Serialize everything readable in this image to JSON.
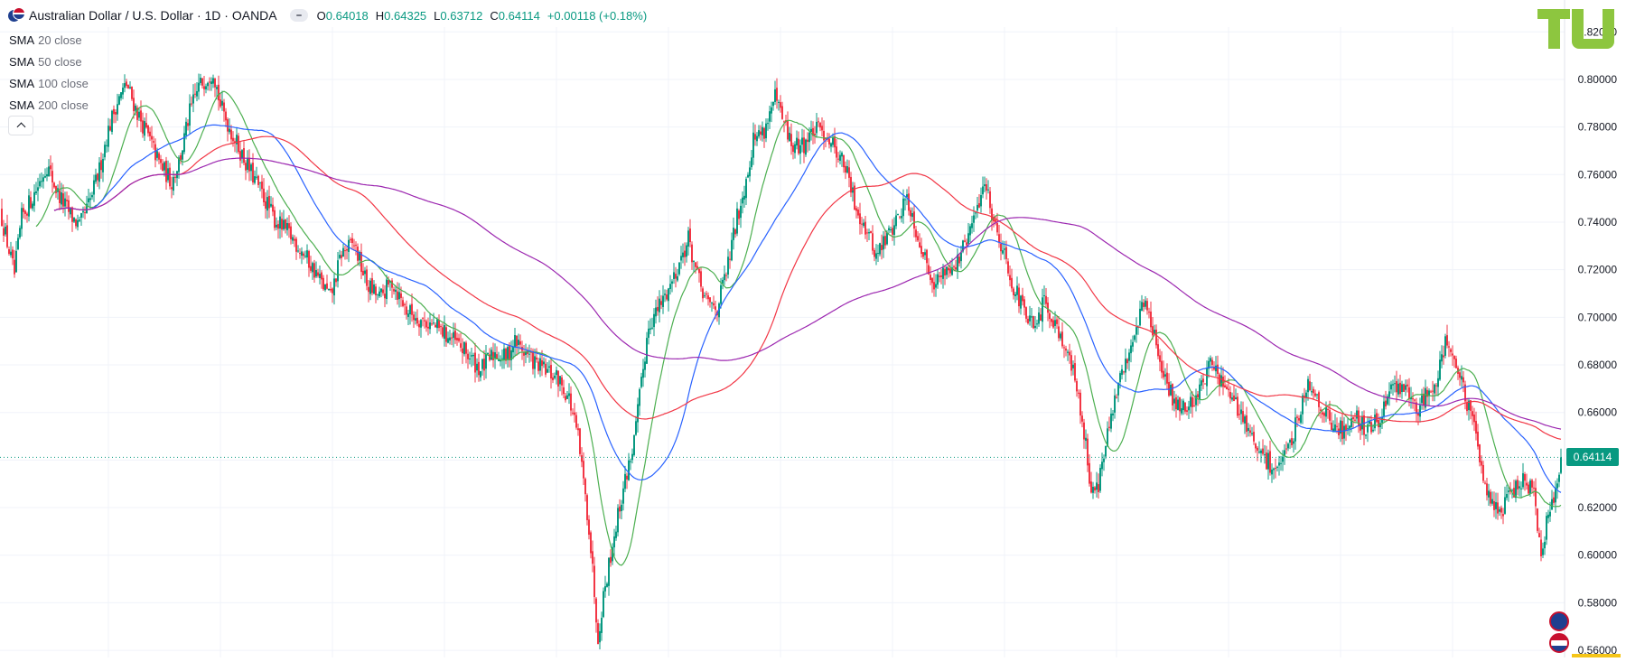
{
  "header": {
    "title": "Australian Dollar / U.S. Dollar · 1D · OANDA",
    "ohlc": [
      {
        "k": "O",
        "v": "0.64018"
      },
      {
        "k": "H",
        "v": "0.64325"
      },
      {
        "k": "L",
        "v": "0.63712"
      },
      {
        "k": "C",
        "v": "0.64114"
      }
    ],
    "change": "+0.00118 (+0.18%)"
  },
  "legend": [
    {
      "name": "SMA",
      "params": "20 close"
    },
    {
      "name": "SMA",
      "params": "50 close"
    },
    {
      "name": "SMA",
      "params": "100 close"
    },
    {
      "name": "SMA",
      "params": "200 close"
    }
  ],
  "current_price_label": "0.64114",
  "colors": {
    "up": "#089981",
    "down": "#f23645",
    "sma20": "#4caf50",
    "sma50": "#2962ff",
    "sma100": "#f23645",
    "sma200": "#9c27b0",
    "logo": "#8dc63f",
    "grid": "#f0f3fa"
  },
  "icons": {
    "collapse": "chevron-up-icon",
    "pair": "aud-usd-flag-icon",
    "base_currency": "aud-flag-icon",
    "quote_currency": "usd-flag-icon",
    "logo": "tu-logo-icon"
  },
  "chart_data": {
    "type": "candlestick",
    "title": "Australian Dollar / U.S. Dollar · 1D · OANDA",
    "ylim": [
      0.557,
      0.822
    ],
    "yticks": [
      "0.82000",
      "0.80000",
      "0.78000",
      "0.76000",
      "0.74000",
      "0.72000",
      "0.70000",
      "0.68000",
      "0.66000",
      "0.64000",
      "0.62000",
      "0.60000",
      "0.58000",
      "0.56000"
    ],
    "ytick_values": [
      0.82,
      0.8,
      0.78,
      0.76,
      0.74,
      0.72,
      0.7,
      0.68,
      0.66,
      0.64,
      0.62,
      0.6,
      0.58,
      0.56
    ],
    "grid": true,
    "last_close": 0.64114,
    "price_path": [
      [
        0,
        0.745
      ],
      [
        10,
        0.728
      ],
      [
        16,
        0.718
      ],
      [
        24,
        0.742
      ],
      [
        38,
        0.752
      ],
      [
        52,
        0.764
      ],
      [
        64,
        0.752
      ],
      [
        78,
        0.743
      ],
      [
        88,
        0.738
      ],
      [
        100,
        0.749
      ],
      [
        110,
        0.762
      ],
      [
        118,
        0.776
      ],
      [
        128,
        0.789
      ],
      [
        140,
        0.798
      ],
      [
        152,
        0.786
      ],
      [
        164,
        0.776
      ],
      [
        176,
        0.765
      ],
      [
        190,
        0.757
      ],
      [
        200,
        0.768
      ],
      [
        210,
        0.786
      ],
      [
        220,
        0.797
      ],
      [
        236,
        0.804
      ],
      [
        244,
        0.789
      ],
      [
        256,
        0.778
      ],
      [
        272,
        0.765
      ],
      [
        290,
        0.752
      ],
      [
        304,
        0.741
      ],
      [
        320,
        0.735
      ],
      [
        336,
        0.727
      ],
      [
        352,
        0.717
      ],
      [
        366,
        0.708
      ],
      [
        378,
        0.727
      ],
      [
        392,
        0.731
      ],
      [
        406,
        0.714
      ],
      [
        420,
        0.708
      ],
      [
        434,
        0.715
      ],
      [
        450,
        0.703
      ],
      [
        466,
        0.699
      ],
      [
        482,
        0.696
      ],
      [
        500,
        0.691
      ],
      [
        516,
        0.685
      ],
      [
        532,
        0.678
      ],
      [
        548,
        0.685
      ],
      [
        560,
        0.683
      ],
      [
        570,
        0.69
      ],
      [
        582,
        0.685
      ],
      [
        594,
        0.68
      ],
      [
        606,
        0.677
      ],
      [
        618,
        0.674
      ],
      [
        630,
        0.666
      ],
      [
        640,
        0.649
      ],
      [
        652,
        0.612
      ],
      [
        662,
        0.566
      ],
      [
        668,
        0.583
      ],
      [
        680,
        0.609
      ],
      [
        690,
        0.628
      ],
      [
        702,
        0.648
      ],
      [
        710,
        0.672
      ],
      [
        718,
        0.697
      ],
      [
        728,
        0.703
      ],
      [
        740,
        0.712
      ],
      [
        752,
        0.723
      ],
      [
        762,
        0.733
      ],
      [
        772,
        0.717
      ],
      [
        782,
        0.706
      ],
      [
        794,
        0.704
      ],
      [
        806,
        0.722
      ],
      [
        816,
        0.742
      ],
      [
        826,
        0.758
      ],
      [
        834,
        0.775
      ],
      [
        846,
        0.779
      ],
      [
        858,
        0.792
      ],
      [
        866,
        0.783
      ],
      [
        878,
        0.771
      ],
      [
        890,
        0.773
      ],
      [
        900,
        0.778
      ],
      [
        910,
        0.779
      ],
      [
        924,
        0.772
      ],
      [
        936,
        0.763
      ],
      [
        946,
        0.748
      ],
      [
        958,
        0.738
      ],
      [
        970,
        0.726
      ],
      [
        982,
        0.734
      ],
      [
        994,
        0.742
      ],
      [
        1004,
        0.751
      ],
      [
        1014,
        0.737
      ],
      [
        1026,
        0.722
      ],
      [
        1036,
        0.714
      ],
      [
        1048,
        0.721
      ],
      [
        1060,
        0.723
      ],
      [
        1072,
        0.734
      ],
      [
        1082,
        0.746
      ],
      [
        1090,
        0.758
      ],
      [
        1100,
        0.741
      ],
      [
        1110,
        0.729
      ],
      [
        1122,
        0.713
      ],
      [
        1134,
        0.702
      ],
      [
        1146,
        0.694
      ],
      [
        1156,
        0.707
      ],
      [
        1168,
        0.698
      ],
      [
        1180,
        0.687
      ],
      [
        1190,
        0.674
      ],
      [
        1200,
        0.652
      ],
      [
        1208,
        0.628
      ],
      [
        1216,
        0.63
      ],
      [
        1226,
        0.65
      ],
      [
        1238,
        0.671
      ],
      [
        1248,
        0.683
      ],
      [
        1258,
        0.697
      ],
      [
        1266,
        0.707
      ],
      [
        1276,
        0.696
      ],
      [
        1286,
        0.676
      ],
      [
        1298,
        0.666
      ],
      [
        1312,
        0.661
      ],
      [
        1326,
        0.668
      ],
      [
        1340,
        0.681
      ],
      [
        1352,
        0.673
      ],
      [
        1364,
        0.664
      ],
      [
        1376,
        0.659
      ],
      [
        1388,
        0.646
      ],
      [
        1400,
        0.64
      ],
      [
        1412,
        0.637
      ],
      [
        1424,
        0.641
      ],
      [
        1436,
        0.657
      ],
      [
        1446,
        0.672
      ],
      [
        1456,
        0.669
      ],
      [
        1466,
        0.66
      ],
      [
        1476,
        0.654
      ],
      [
        1488,
        0.652
      ],
      [
        1500,
        0.66
      ],
      [
        1512,
        0.652
      ],
      [
        1524,
        0.656
      ],
      [
        1536,
        0.666
      ],
      [
        1548,
        0.672
      ],
      [
        1558,
        0.668
      ],
      [
        1568,
        0.661
      ],
      [
        1578,
        0.667
      ],
      [
        1590,
        0.675
      ],
      [
        1600,
        0.69
      ],
      [
        1610,
        0.683
      ],
      [
        1620,
        0.669
      ],
      [
        1632,
        0.653
      ],
      [
        1642,
        0.633
      ],
      [
        1652,
        0.623
      ],
      [
        1662,
        0.618
      ],
      [
        1672,
        0.626
      ],
      [
        1682,
        0.63
      ],
      [
        1690,
        0.631
      ],
      [
        1698,
        0.625
      ],
      [
        1706,
        0.597
      ],
      [
        1712,
        0.614
      ],
      [
        1720,
        0.626
      ],
      [
        1728,
        0.636
      ],
      [
        1732,
        0.641
      ]
    ],
    "series": [
      {
        "name": "SMA 20 close",
        "values": []
      },
      {
        "name": "SMA 50 close",
        "values": []
      },
      {
        "name": "SMA 100 close",
        "values": []
      },
      {
        "name": "SMA 200 close",
        "values": []
      }
    ]
  }
}
